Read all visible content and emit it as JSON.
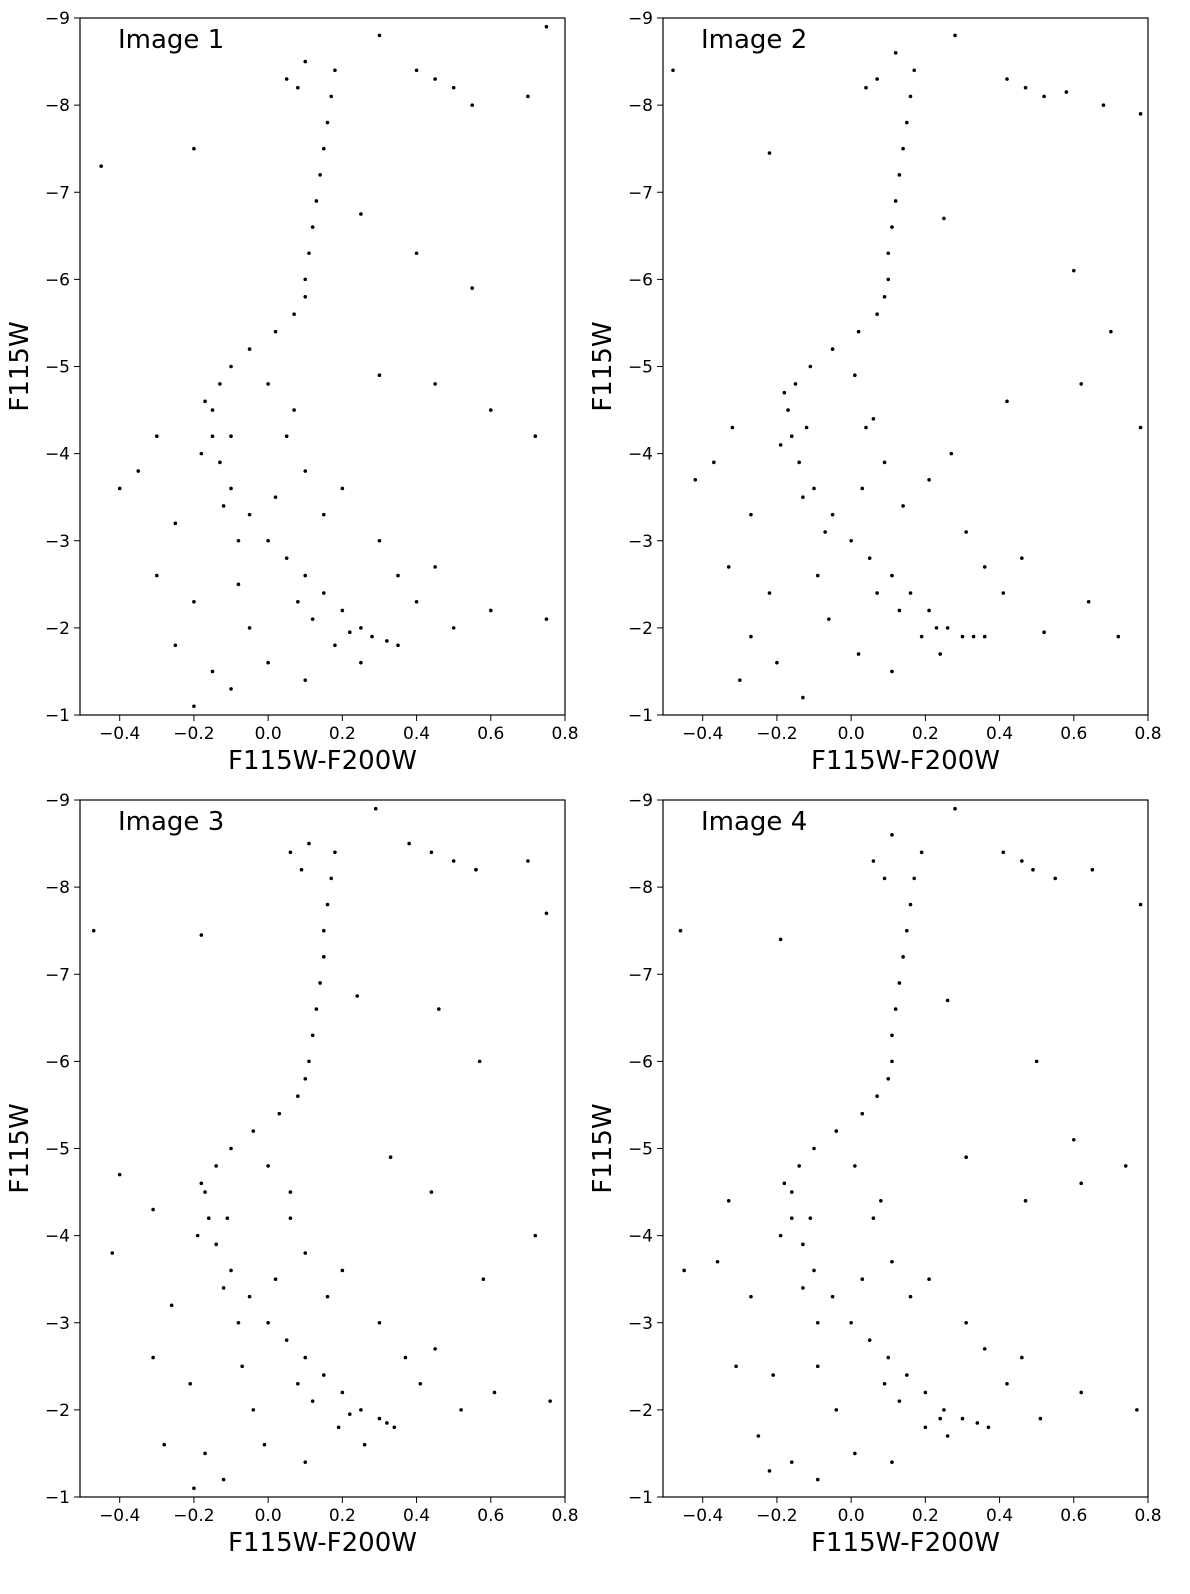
{
  "chart_data": [
    {
      "type": "scatter",
      "title": "Image 1",
      "x_label": "F115W-F200W",
      "y_label": "F115W",
      "color": "#000000",
      "xlim": [
        -0.507,
        0.8
      ],
      "ylim": [
        -1,
        -9
      ],
      "xticks": [
        {
          "value": -0.4,
          "label": "−0.4"
        },
        {
          "value": -0.2,
          "label": "−0.2"
        },
        {
          "value": 0,
          "label": "0.0"
        },
        0.2,
        0.4,
        0.6,
        0.8
      ],
      "yticks": [
        {
          "value": -1,
          "label": "−1"
        },
        {
          "value": -2,
          "label": "−2"
        },
        {
          "value": -3,
          "label": "−3"
        },
        {
          "value": -4,
          "label": "−4"
        },
        {
          "value": -5,
          "label": "−5"
        },
        {
          "value": -6,
          "label": "−6"
        },
        {
          "value": -7,
          "label": "−7"
        },
        {
          "value": -8,
          "label": "−8"
        },
        {
          "value": -9,
          "label": "−9"
        }
      ],
      "x": [
        0.28,
        0.25,
        0.2,
        0.15,
        0.1,
        0.05,
        0.0,
        -0.05,
        -0.1,
        -0.13,
        -0.15,
        -0.15,
        -0.13,
        -0.1,
        -0.05,
        0.02,
        0.07,
        0.1,
        0.1,
        0.11,
        0.12,
        0.13,
        0.14,
        0.15,
        0.16,
        0.17,
        0.18,
        0.05,
        0.08,
        0.1,
        0.3,
        0.4,
        0.45,
        0.5,
        0.55,
        0.7,
        0.75,
        -0.45,
        -0.2,
        0.25,
        0.4,
        0.55,
        0.3,
        0.45,
        0.6,
        0.72,
        -0.3,
        -0.35,
        -0.4,
        -0.25,
        -0.3,
        -0.2,
        -0.25,
        -0.15,
        -0.1,
        -0.2,
        0.1,
        0.15,
        0.2,
        0.3,
        0.35,
        0.4,
        0.45,
        0.5,
        0.6,
        0.75,
        0.05,
        0.0,
        0.1,
        0.25,
        0.35,
        -0.05,
        -0.08,
        0.12,
        0.18,
        0.08,
        -0.1,
        -0.12,
        -0.18,
        -0.17,
        -0.08,
        0.02,
        0.07,
        0.0,
        0.22,
        0.32
      ],
      "y": [
        -1.9,
        -2.0,
        -2.2,
        -2.4,
        -2.6,
        -2.8,
        -3.0,
        -3.3,
        -3.6,
        -3.9,
        -4.2,
        -4.5,
        -4.8,
        -5.0,
        -5.2,
        -5.4,
        -5.6,
        -5.8,
        -6.0,
        -6.3,
        -6.6,
        -6.9,
        -7.2,
        -7.5,
        -7.8,
        -8.1,
        -8.4,
        -8.3,
        -8.2,
        -8.5,
        -8.8,
        -8.4,
        -8.3,
        -8.2,
        -8.0,
        -8.1,
        -8.9,
        -7.3,
        -7.5,
        -6.75,
        -6.3,
        -5.9,
        -4.9,
        -4.8,
        -4.5,
        -4.2,
        -4.2,
        -3.8,
        -3.6,
        -3.2,
        -2.6,
        -2.3,
        -1.8,
        -1.5,
        -1.3,
        -1.1,
        -3.8,
        -3.3,
        -3.6,
        -3.0,
        -2.6,
        -2.3,
        -2.7,
        -2.0,
        -2.2,
        -2.1,
        -4.2,
        -1.6,
        -1.4,
        -1.6,
        -1.8,
        -2.0,
        -2.5,
        -2.1,
        -1.8,
        -2.3,
        -4.2,
        -3.4,
        -4.0,
        -4.6,
        -3.0,
        -3.5,
        -4.5,
        -4.8,
        -1.95,
        -1.85
      ]
    },
    {
      "type": "scatter",
      "title": "Image 2",
      "x_label": "F115W-F200W",
      "y_label": "F115W",
      "color": "#000000",
      "xlim": [
        -0.507,
        0.8
      ],
      "ylim": [
        -1,
        -9
      ],
      "xticks": [
        {
          "value": -0.4,
          "label": "−0.4"
        },
        {
          "value": -0.2,
          "label": "−0.2"
        },
        {
          "value": 0,
          "label": "0.0"
        },
        0.2,
        0.4,
        0.6,
        0.8
      ],
      "yticks": [
        {
          "value": -1,
          "label": "−1"
        },
        {
          "value": -2,
          "label": "−2"
        },
        {
          "value": -3,
          "label": "−3"
        },
        {
          "value": -4,
          "label": "−4"
        },
        {
          "value": -5,
          "label": "−5"
        },
        {
          "value": -6,
          "label": "−6"
        },
        {
          "value": -7,
          "label": "−7"
        },
        {
          "value": -8,
          "label": "−8"
        },
        {
          "value": -9,
          "label": "−9"
        }
      ],
      "x": [
        0.3,
        0.26,
        0.21,
        0.16,
        0.11,
        0.05,
        0.0,
        -0.05,
        -0.1,
        -0.14,
        -0.16,
        -0.17,
        -0.15,
        -0.11,
        -0.05,
        0.02,
        0.07,
        0.09,
        0.1,
        0.1,
        0.11,
        0.12,
        0.13,
        0.14,
        0.15,
        0.16,
        0.17,
        0.04,
        0.07,
        0.12,
        0.28,
        0.42,
        0.47,
        0.52,
        0.58,
        0.68,
        0.78,
        -0.48,
        -0.22,
        0.25,
        0.6,
        0.7,
        0.27,
        0.42,
        0.62,
        0.78,
        -0.32,
        -0.37,
        -0.42,
        -0.27,
        -0.33,
        -0.22,
        -0.27,
        -0.2,
        -0.13,
        -0.3,
        0.09,
        0.14,
        0.21,
        0.31,
        0.36,
        0.41,
        0.46,
        0.52,
        0.64,
        0.72,
        0.04,
        0.02,
        0.11,
        0.24,
        0.36,
        -0.06,
        -0.09,
        0.13,
        0.19,
        0.07,
        -0.12,
        -0.13,
        -0.19,
        -0.18,
        -0.07,
        0.03,
        0.06,
        0.01,
        0.23,
        0.33
      ],
      "y": [
        -1.9,
        -2.0,
        -2.2,
        -2.4,
        -2.6,
        -2.8,
        -3.0,
        -3.3,
        -3.6,
        -3.9,
        -4.2,
        -4.5,
        -4.8,
        -5.0,
        -5.2,
        -5.4,
        -5.6,
        -5.8,
        -6.0,
        -6.3,
        -6.6,
        -6.9,
        -7.2,
        -7.5,
        -7.8,
        -8.1,
        -8.4,
        -8.2,
        -8.3,
        -8.6,
        -8.8,
        -8.3,
        -8.2,
        -8.1,
        -8.15,
        -8.0,
        -7.9,
        -8.4,
        -7.45,
        -6.7,
        -6.1,
        -5.4,
        -4.0,
        -4.6,
        -4.8,
        -4.3,
        -4.3,
        -3.9,
        -3.7,
        -3.3,
        -2.7,
        -2.4,
        -1.9,
        -1.6,
        -1.2,
        -1.4,
        -3.9,
        -3.4,
        -3.7,
        -3.1,
        -2.7,
        -2.4,
        -2.8,
        -1.95,
        -2.3,
        -1.9,
        -4.3,
        -1.7,
        -1.5,
        -1.7,
        -1.9,
        -2.1,
        -2.6,
        -2.2,
        -1.9,
        -2.4,
        -4.3,
        -3.5,
        -4.1,
        -4.7,
        -3.1,
        -3.6,
        -4.4,
        -4.9,
        -2.0,
        -1.9
      ]
    },
    {
      "type": "scatter",
      "title": "Image 3",
      "x_label": "F115W-F200W",
      "y_label": "F115W",
      "color": "#000000",
      "xlim": [
        -0.507,
        0.8
      ],
      "ylim": [
        -1,
        -9
      ],
      "xticks": [
        {
          "value": -0.4,
          "label": "−0.4"
        },
        {
          "value": -0.2,
          "label": "−0.2"
        },
        {
          "value": 0,
          "label": "0.0"
        },
        0.2,
        0.4,
        0.6,
        0.8
      ],
      "yticks": [
        {
          "value": -1,
          "label": "−1"
        },
        {
          "value": -2,
          "label": "−2"
        },
        {
          "value": -3,
          "label": "−3"
        },
        {
          "value": -4,
          "label": "−4"
        },
        {
          "value": -5,
          "label": "−5"
        },
        {
          "value": -6,
          "label": "−6"
        },
        {
          "value": -7,
          "label": "−7"
        },
        {
          "value": -8,
          "label": "−8"
        },
        {
          "value": -9,
          "label": "−9"
        }
      ],
      "x": [
        0.3,
        0.25,
        0.2,
        0.15,
        0.1,
        0.05,
        0.0,
        -0.05,
        -0.1,
        -0.14,
        -0.16,
        -0.17,
        -0.14,
        -0.1,
        -0.04,
        0.03,
        0.08,
        0.1,
        0.11,
        0.12,
        0.13,
        0.14,
        0.15,
        0.15,
        0.16,
        0.17,
        0.18,
        0.06,
        0.09,
        0.11,
        0.29,
        0.38,
        0.44,
        0.5,
        0.56,
        0.7,
        0.75,
        -0.47,
        -0.18,
        0.24,
        0.46,
        0.57,
        0.33,
        0.44,
        0.58,
        0.72,
        -0.31,
        -0.4,
        -0.42,
        -0.26,
        -0.31,
        -0.21,
        -0.28,
        -0.17,
        -0.12,
        -0.2,
        0.1,
        0.16,
        0.2,
        0.3,
        0.37,
        0.41,
        0.45,
        0.52,
        0.61,
        0.76,
        0.06,
        -0.01,
        0.1,
        0.26,
        0.34,
        -0.04,
        -0.07,
        0.12,
        0.19,
        0.08,
        -0.11,
        -0.12,
        -0.19,
        -0.18,
        -0.08,
        0.02,
        0.06,
        0.0,
        0.22,
        0.32
      ],
      "y": [
        -1.9,
        -2.0,
        -2.2,
        -2.4,
        -2.6,
        -2.8,
        -3.0,
        -3.3,
        -3.6,
        -3.9,
        -4.2,
        -4.5,
        -4.8,
        -5.0,
        -5.2,
        -5.4,
        -5.6,
        -5.8,
        -6.0,
        -6.3,
        -6.6,
        -6.9,
        -7.2,
        -7.5,
        -7.8,
        -8.1,
        -8.4,
        -8.4,
        -8.2,
        -8.5,
        -8.9,
        -8.5,
        -8.4,
        -8.3,
        -8.2,
        -8.3,
        -7.7,
        -7.5,
        -7.45,
        -6.75,
        -6.6,
        -6.0,
        -4.9,
        -4.5,
        -3.5,
        -4.0,
        -4.3,
        -4.7,
        -3.8,
        -3.2,
        -2.6,
        -2.3,
        -1.6,
        -1.5,
        -1.2,
        -1.1,
        -3.8,
        -3.3,
        -3.6,
        -3.0,
        -2.6,
        -2.3,
        -2.7,
        -2.0,
        -2.2,
        -2.1,
        -4.2,
        -1.6,
        -1.4,
        -1.6,
        -1.8,
        -2.0,
        -2.5,
        -2.1,
        -1.8,
        -2.3,
        -4.2,
        -3.4,
        -4.0,
        -4.6,
        -3.0,
        -3.5,
        -4.5,
        -4.8,
        -1.95,
        -1.85
      ]
    },
    {
      "type": "scatter",
      "title": "Image 4",
      "x_label": "F115W-F200W",
      "y_label": "F115W",
      "color": "#000000",
      "xlim": [
        -0.507,
        0.8
      ],
      "ylim": [
        -1,
        -9
      ],
      "xticks": [
        {
          "value": -0.4,
          "label": "−0.4"
        },
        {
          "value": -0.2,
          "label": "−0.2"
        },
        {
          "value": 0,
          "label": "0.0"
        },
        0.2,
        0.4,
        0.6,
        0.8
      ],
      "yticks": [
        {
          "value": -1,
          "label": "−1"
        },
        {
          "value": -2,
          "label": "−2"
        },
        {
          "value": -3,
          "label": "−3"
        },
        {
          "value": -4,
          "label": "−4"
        },
        {
          "value": -5,
          "label": "−5"
        },
        {
          "value": -6,
          "label": "−6"
        },
        {
          "value": -7,
          "label": "−7"
        },
        {
          "value": -8,
          "label": "−8"
        },
        {
          "value": -9,
          "label": "−9"
        }
      ],
      "x": [
        0.3,
        0.25,
        0.2,
        0.15,
        0.1,
        0.05,
        0.0,
        -0.05,
        -0.1,
        -0.13,
        -0.16,
        -0.16,
        -0.14,
        -0.1,
        -0.04,
        0.03,
        0.07,
        0.1,
        0.11,
        0.11,
        0.12,
        0.13,
        0.14,
        0.15,
        0.16,
        0.17,
        0.19,
        0.06,
        0.09,
        0.11,
        0.28,
        0.41,
        0.46,
        0.49,
        0.55,
        0.65,
        0.78,
        -0.46,
        -0.19,
        0.26,
        0.5,
        0.6,
        0.31,
        0.47,
        0.62,
        0.74,
        -0.33,
        -0.36,
        -0.45,
        -0.27,
        -0.31,
        -0.21,
        -0.25,
        -0.16,
        -0.09,
        -0.22,
        0.11,
        0.16,
        0.21,
        0.31,
        0.36,
        0.42,
        0.46,
        0.51,
        0.62,
        0.77,
        0.06,
        0.01,
        0.11,
        0.26,
        0.37,
        -0.04,
        -0.09,
        0.13,
        0.2,
        0.09,
        -0.11,
        -0.13,
        -0.19,
        -0.18,
        -0.09,
        0.03,
        0.08,
        0.01,
        0.24,
        0.34
      ],
      "y": [
        -1.9,
        -2.0,
        -2.2,
        -2.4,
        -2.6,
        -2.8,
        -3.0,
        -3.3,
        -3.6,
        -3.9,
        -4.2,
        -4.5,
        -4.8,
        -5.0,
        -5.2,
        -5.4,
        -5.6,
        -5.8,
        -6.0,
        -6.3,
        -6.6,
        -6.9,
        -7.2,
        -7.5,
        -7.8,
        -8.1,
        -8.4,
        -8.3,
        -8.1,
        -8.6,
        -8.9,
        -8.4,
        -8.3,
        -8.2,
        -8.1,
        -8.2,
        -7.8,
        -7.5,
        -7.4,
        -6.7,
        -6.0,
        -5.1,
        -4.9,
        -4.4,
        -4.6,
        -4.8,
        -4.4,
        -3.7,
        -3.6,
        -3.3,
        -2.5,
        -2.4,
        -1.7,
        -1.4,
        -1.2,
        -1.3,
        -3.7,
        -3.3,
        -3.5,
        -3.0,
        -2.7,
        -2.3,
        -2.6,
        -1.9,
        -2.2,
        -2.0,
        -4.2,
        -1.5,
        -1.4,
        -1.7,
        -1.8,
        -2.0,
        -2.5,
        -2.1,
        -1.8,
        -2.3,
        -4.2,
        -3.4,
        -4.0,
        -4.6,
        -3.0,
        -3.5,
        -4.4,
        -4.8,
        -1.9,
        -1.85
      ]
    }
  ]
}
